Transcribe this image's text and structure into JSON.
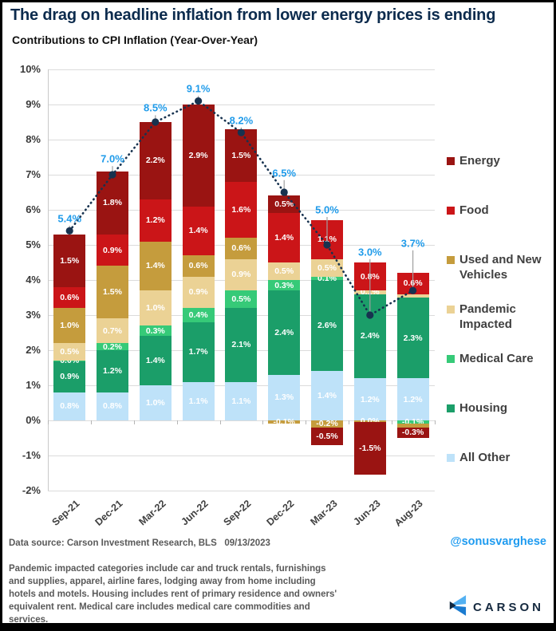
{
  "title": "The drag on headline inflation from lower energy prices is ending",
  "subtitle": "Contributions to CPI Inflation (Year-Over-Year)",
  "colors": {
    "title_navy": "#0C2B4D",
    "energy": "#9A1412",
    "food": "#CB1518",
    "vehicles": "#C59C3D",
    "pandemic": "#EBD295",
    "medical": "#36CA78",
    "housing": "#1B9E69",
    "all_other": "#BEE2F9",
    "total_line": "#17324F",
    "total_label": "#1F9BEA",
    "handle_blue": "#1E9BF0",
    "gridline": "#DBDBDB"
  },
  "chart_data": {
    "type": "bar",
    "stacked": true,
    "title": "Contributions to CPI Inflation (Year-Over-Year)",
    "categories": [
      "Sep-21",
      "Dec-21",
      "Mar-22",
      "Jun-22",
      "Sep-22",
      "Dec-22",
      "Mar-23",
      "Jun-23",
      "Aug-23"
    ],
    "series": [
      {
        "name": "Energy",
        "color": "energy",
        "values": [
          1.5,
          1.8,
          2.2,
          2.9,
          1.5,
          0.5,
          -0.5,
          -1.5,
          -0.3
        ],
        "labels": [
          "1.5%",
          "1.8%",
          "2.2%",
          "2.9%",
          "1.5%",
          "0.5%",
          "-0.5%",
          "-1.5%",
          "-0.3%"
        ]
      },
      {
        "name": "Food",
        "color": "food",
        "values": [
          0.6,
          0.9,
          1.2,
          1.4,
          1.6,
          1.4,
          1.1,
          0.8,
          0.6
        ],
        "labels": [
          "0.6%",
          "0.9%",
          "1.2%",
          "1.4%",
          "1.6%",
          "1.4%",
          "1.1%",
          "0.8%",
          "0.6%"
        ]
      },
      {
        "name": "Used and New Vehicles",
        "color": "vehicles",
        "values": [
          1.0,
          1.5,
          1.4,
          0.6,
          0.6,
          -0.1,
          -0.2,
          -0.05,
          -0.1
        ],
        "labels": [
          "1.0%",
          "1.5%",
          "1.4%",
          "0.6%",
          "0.6%",
          "-0.1%",
          "-0.2%",
          "0.0%",
          ""
        ]
      },
      {
        "name": "Pandemic Impacted",
        "color": "pandemic",
        "values": [
          0.5,
          0.7,
          1.0,
          0.9,
          0.9,
          0.5,
          0.5,
          0.1,
          0.1
        ],
        "labels": [
          "0.5%",
          "0.7%",
          "1.0%",
          "0.9%",
          "0.9%",
          "0.5%",
          "0.5%",
          "0.1%",
          ""
        ]
      },
      {
        "name": "Medical Care",
        "color": "medical",
        "values": [
          0.0,
          0.2,
          0.3,
          0.4,
          0.5,
          0.3,
          0.1,
          0.0,
          -0.1
        ],
        "labels": [
          "0.0%",
          "0.2%",
          "0.3%",
          "0.4%",
          "0.5%",
          "0.3%",
          "0.1%",
          "",
          "-0.1%"
        ]
      },
      {
        "name": "Housing",
        "color": "housing",
        "values": [
          0.9,
          1.2,
          1.4,
          1.7,
          2.1,
          2.4,
          2.6,
          2.4,
          2.3
        ],
        "labels": [
          "0.9%",
          "1.2%",
          "1.4%",
          "1.7%",
          "2.1%",
          "2.4%",
          "2.6%",
          "2.4%",
          "2.3%"
        ]
      },
      {
        "name": "All Other",
        "color": "all_other",
        "values": [
          0.8,
          0.8,
          1.0,
          1.1,
          1.1,
          1.3,
          1.4,
          1.2,
          1.2
        ],
        "labels": [
          "0.8%",
          "0.8%",
          "1.0%",
          "1.1%",
          "1.1%",
          "1.3%",
          "1.4%",
          "1.2%",
          "1.2%"
        ]
      }
    ],
    "stack_order_bottom_to_top": [
      "All Other",
      "Housing",
      "Medical Care",
      "Pandemic Impacted",
      "Used and New Vehicles",
      "Food",
      "Energy"
    ],
    "totals": {
      "values": [
        5.4,
        7.0,
        8.5,
        9.1,
        8.2,
        6.5,
        5.0,
        3.0,
        3.7
      ],
      "labels": [
        "5.4%",
        "7.0%",
        "8.5%",
        "9.1%",
        "8.2%",
        "6.5%",
        "5.0%",
        "3.0%",
        "3.7%"
      ],
      "label_height_pct": [
        5.75,
        7.45,
        8.9,
        9.45,
        8.55,
        7.05,
        6.0,
        4.8,
        5.05
      ]
    },
    "ylim": [
      -2,
      10
    ],
    "ytick_labels": [
      "10%",
      "9%",
      "8%",
      "7%",
      "6%",
      "5%",
      "4%",
      "3%",
      "2%",
      "1%",
      "0%",
      "-1%",
      "-2%"
    ],
    "grid": true,
    "legend_position": "right",
    "line_style": "dotted"
  },
  "legend": {
    "items": [
      {
        "label": "Energy",
        "color": "energy"
      },
      {
        "label": "Food",
        "color": "food"
      },
      {
        "label": "Used and New Vehicles",
        "color": "vehicles"
      },
      {
        "label": "Pandemic Impacted",
        "color": "pandemic"
      },
      {
        "label": "Medical Care",
        "color": "medical"
      },
      {
        "label": "Housing",
        "color": "housing"
      },
      {
        "label": "All Other",
        "color": "all_other"
      }
    ]
  },
  "footer": {
    "data_source": "Data source: Carson Investment Research, BLS",
    "date": "09/13/2023",
    "handle": "@sonusvarghese"
  },
  "footnote": "Pandemic impacted categories include car and truck rentals, furnishings and supplies, apparel, airline fares, lodging away from home including hotels and motels. Housing includes rent of primary residence and owners' equivalent rent. Medical care includes medical care commodities and services.",
  "logo": {
    "text": "CARSON"
  }
}
